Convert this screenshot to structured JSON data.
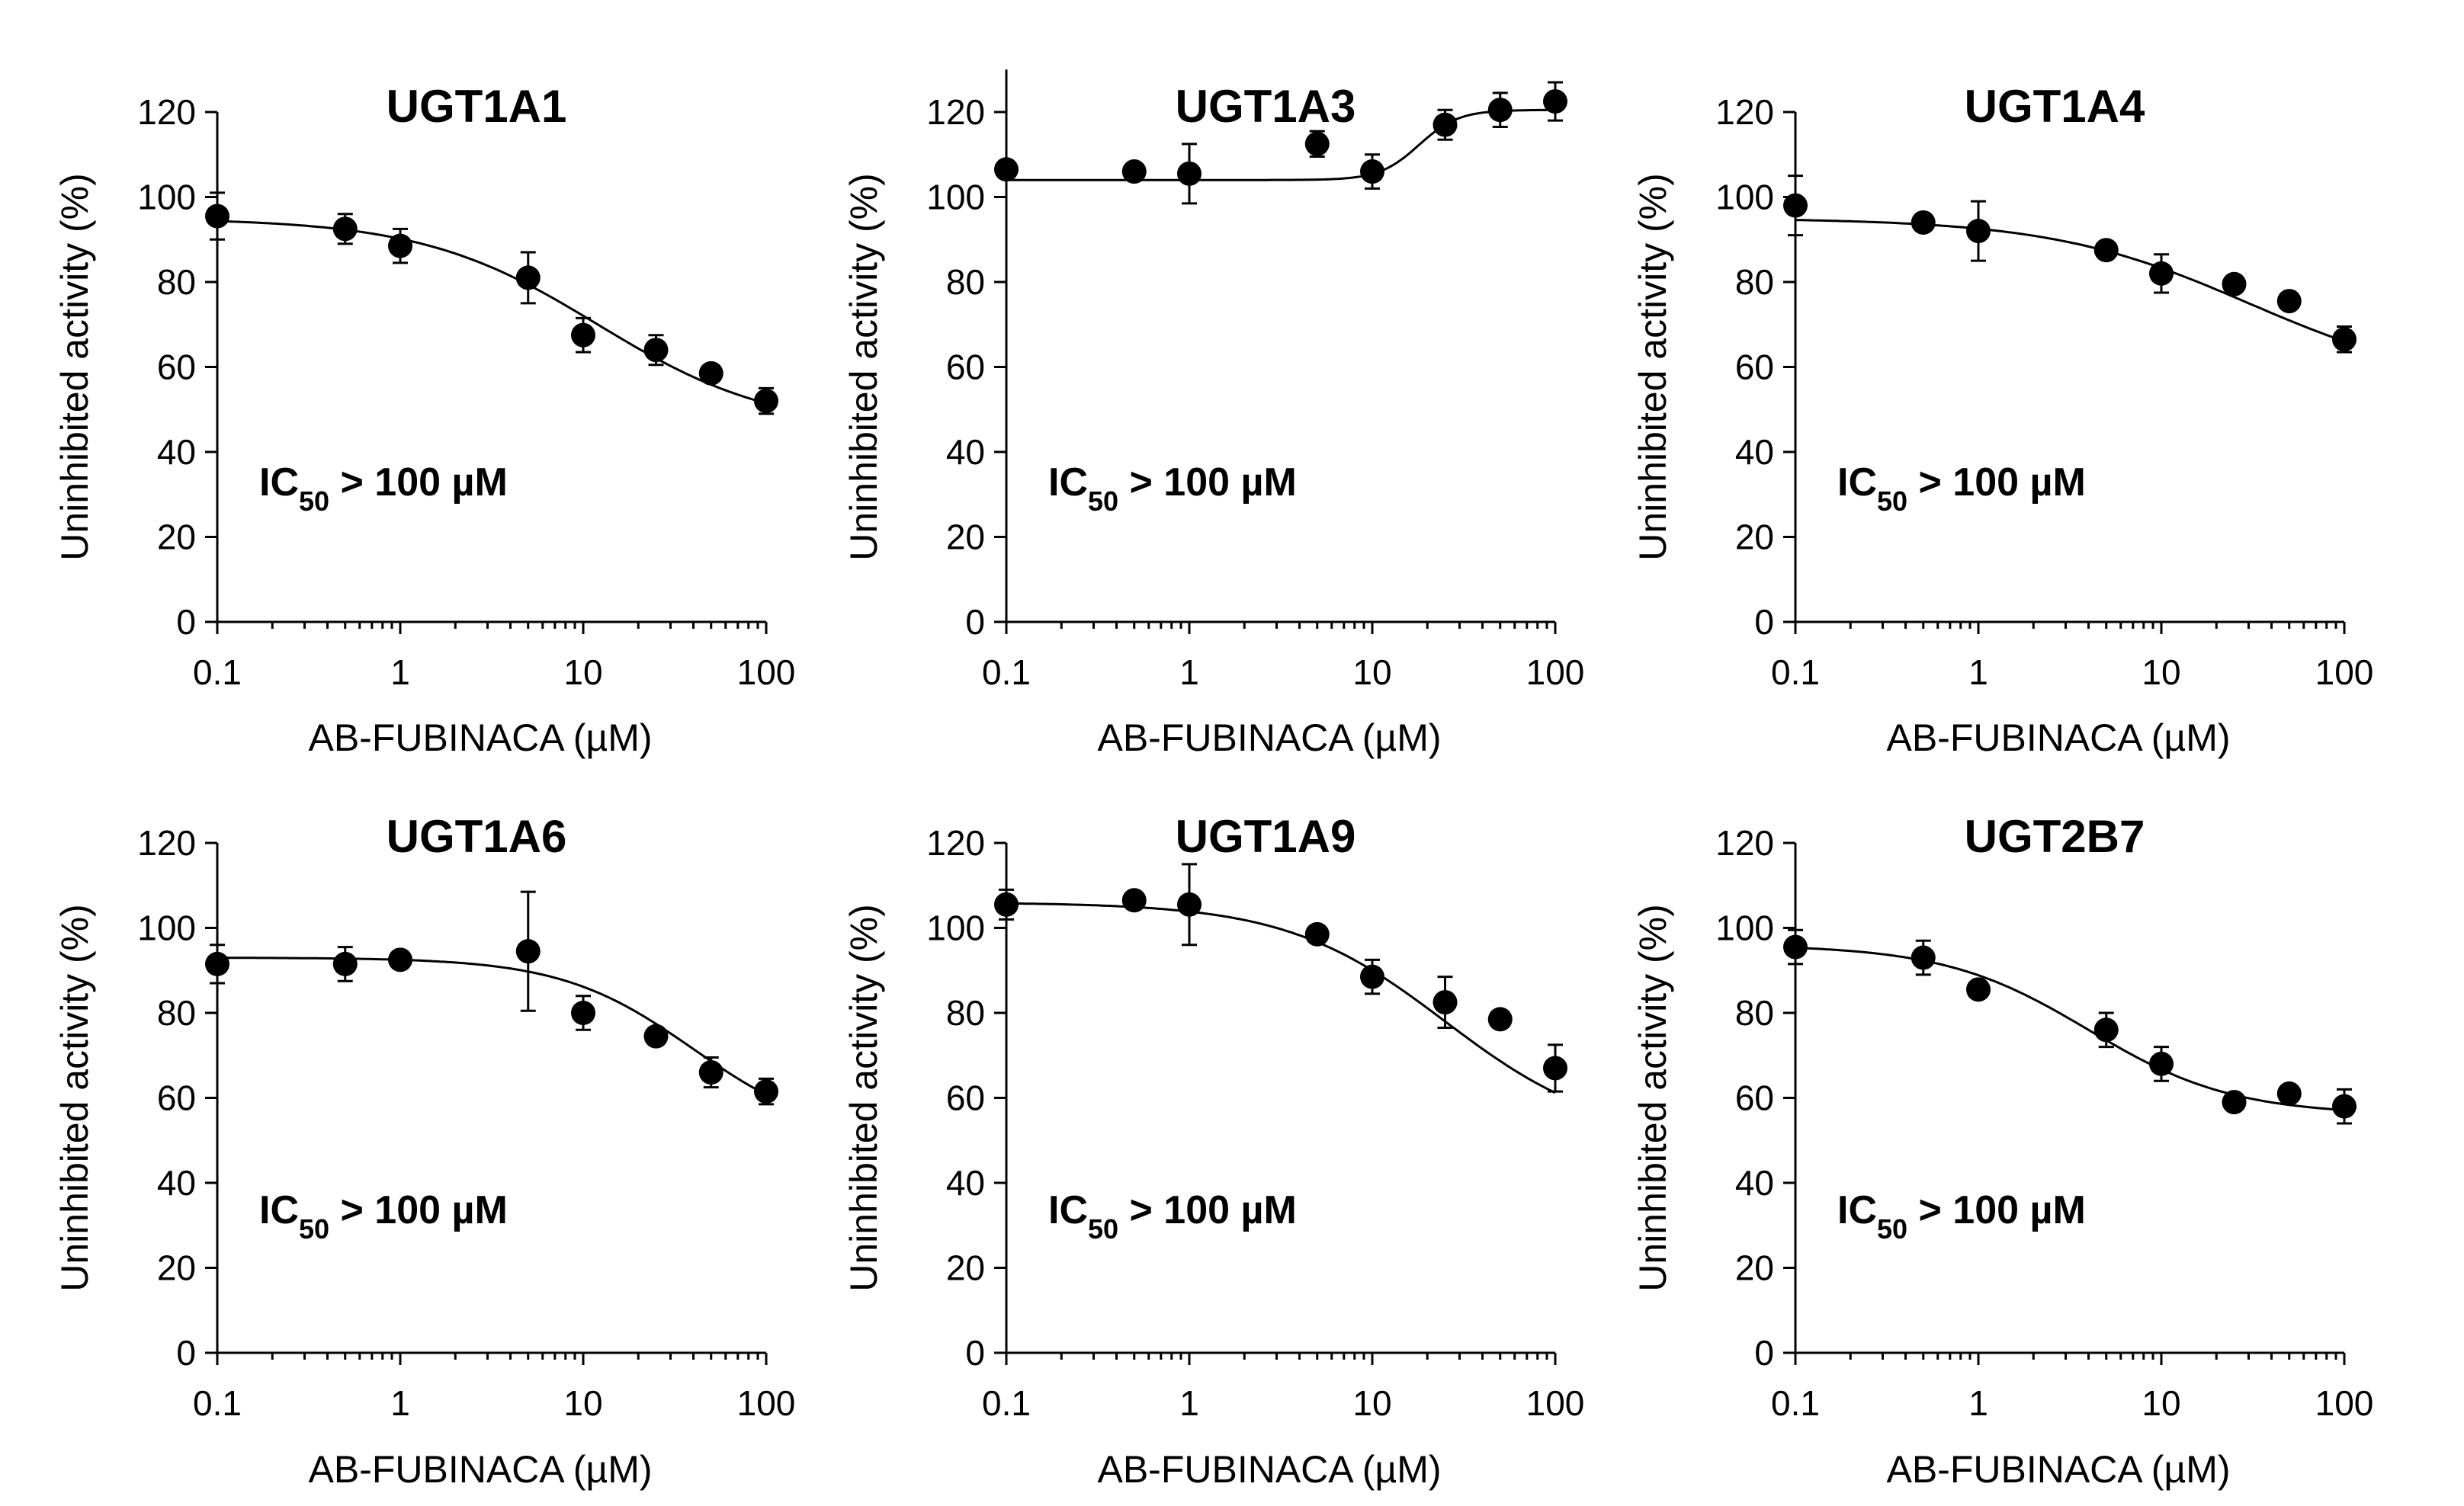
{
  "chart_data": [
    {
      "type": "scatter",
      "title": "UGT1A1",
      "annotation": {
        "main": "IC",
        "sub": "50",
        "rest": " > 100 µM"
      },
      "xlabel": "AB-FUBINACA (µM)",
      "ylabel": "Uninhibited activity (%)",
      "x_scale": "log",
      "xlim": [
        0.1,
        100
      ],
      "ylim": [
        0,
        120
      ],
      "xticks": [
        0.1,
        1,
        10,
        100
      ],
      "xtick_labels": [
        "0.1",
        "1",
        "10",
        "100"
      ],
      "yticks": [
        0,
        20,
        40,
        60,
        80,
        100,
        120
      ],
      "yaxis_top": 120,
      "x": [
        0.1,
        0.5,
        1,
        5,
        10,
        25,
        50,
        100
      ],
      "y": [
        95.5,
        92.5,
        88.5,
        81,
        67.5,
        64,
        58.5,
        52
      ],
      "err": [
        5.5,
        3.5,
        4,
        6,
        4,
        3.5,
        1.5,
        3
      ],
      "fit": {
        "top": 95,
        "bottom": 45,
        "ec50": 12,
        "hill": 0.9
      }
    },
    {
      "type": "scatter",
      "title": "UGT1A3",
      "annotation": {
        "main": "IC",
        "sub": "50",
        "rest": " > 100 µM"
      },
      "xlabel": "AB-FUBINACA (µM)",
      "ylabel": "Uninhibited activity (%)",
      "x_scale": "log",
      "xlim": [
        0.1,
        100
      ],
      "ylim": [
        0,
        130
      ],
      "xticks": [
        0.1,
        1,
        10,
        100
      ],
      "xtick_labels": [
        "0.1",
        "1",
        "10",
        "100"
      ],
      "yticks": [
        0,
        20,
        40,
        60,
        80,
        100,
        120
      ],
      "yaxis_top": 130,
      "x": [
        0.1,
        0.5,
        1,
        5,
        10,
        25,
        50,
        100
      ],
      "y": [
        106.5,
        106,
        105.5,
        112.5,
        106,
        117,
        120.5,
        122.5
      ],
      "err": [
        2,
        1.5,
        7,
        3,
        4,
        3.5,
        4,
        4.5
      ],
      "fit": {
        "top": 104,
        "bottom": 120.5,
        "ec50": 18,
        "hill": 4
      }
    },
    {
      "type": "scatter",
      "title": "UGT1A4",
      "annotation": {
        "main": "IC",
        "sub": "50",
        "rest": " > 100 µM"
      },
      "xlabel": "AB-FUBINACA (µM)",
      "ylabel": "Uninhibited activity (%)",
      "x_scale": "log",
      "xlim": [
        0.1,
        100
      ],
      "ylim": [
        0,
        120
      ],
      "xticks": [
        0.1,
        1,
        10,
        100
      ],
      "xtick_labels": [
        "0.1",
        "1",
        "10",
        "100"
      ],
      "yticks": [
        0,
        20,
        40,
        60,
        80,
        100,
        120
      ],
      "yaxis_top": 120,
      "x": [
        0.1,
        0.5,
        1,
        5,
        10,
        25,
        50,
        100
      ],
      "y": [
        98,
        94,
        92,
        87.5,
        82,
        79.5,
        75.5,
        66.5
      ],
      "err": [
        7,
        2,
        7,
        2,
        4.5,
        1.5,
        1.5,
        3
      ],
      "fit": {
        "top": 95,
        "bottom": 55,
        "ec50": 30,
        "hill": 0.8
      }
    },
    {
      "type": "scatter",
      "title": "UGT1A6",
      "annotation": {
        "main": "IC",
        "sub": "50",
        "rest": " > 100 µM"
      },
      "xlabel": "AB-FUBINACA (µM)",
      "ylabel": "Uninhibited activity (%)",
      "x_scale": "log",
      "xlim": [
        0.1,
        100
      ],
      "ylim": [
        0,
        120
      ],
      "xticks": [
        0.1,
        1,
        10,
        100
      ],
      "xtick_labels": [
        "0.1",
        "1",
        "10",
        "100"
      ],
      "yticks": [
        0,
        20,
        40,
        60,
        80,
        100,
        120
      ],
      "yaxis_top": 120,
      "x": [
        0.1,
        0.5,
        1,
        5,
        10,
        25,
        50,
        100
      ],
      "y": [
        91.5,
        91.5,
        92.5,
        94.5,
        80,
        74.5,
        66,
        61.5
      ],
      "err": [
        4.5,
        4,
        1.5,
        14,
        4,
        2,
        3.5,
        3
      ],
      "fit": {
        "top": 93,
        "bottom": 50,
        "ec50": 40,
        "hill": 1.2
      }
    },
    {
      "type": "scatter",
      "title": "UGT1A9",
      "annotation": {
        "main": "IC",
        "sub": "50",
        "rest": " > 100 µM"
      },
      "xlabel": "AB-FUBINACA (µM)",
      "ylabel": "Uninhibited activity (%)",
      "x_scale": "log",
      "xlim": [
        0.1,
        100
      ],
      "ylim": [
        0,
        120
      ],
      "xticks": [
        0.1,
        1,
        10,
        100
      ],
      "xtick_labels": [
        "0.1",
        "1",
        "10",
        "100"
      ],
      "yticks": [
        0,
        20,
        40,
        60,
        80,
        100,
        120
      ],
      "yaxis_top": 120,
      "x": [
        0.1,
        0.5,
        1,
        5,
        10,
        25,
        50,
        100
      ],
      "y": [
        105.5,
        106.5,
        105.5,
        98.5,
        88.5,
        82.5,
        78.5,
        67
      ],
      "err": [
        3.5,
        2,
        9.5,
        2,
        4,
        6,
        2,
        5.5
      ],
      "fit": {
        "top": 106,
        "bottom": 50,
        "ec50": 25,
        "hill": 1
      }
    },
    {
      "type": "scatter",
      "title": "UGT2B7",
      "annotation": {
        "main": "IC",
        "sub": "50",
        "rest": " > 100 µM"
      },
      "xlabel": "AB-FUBINACA (µM)",
      "ylabel": "Uninhibited activity (%)",
      "x_scale": "log",
      "xlim": [
        0.1,
        100
      ],
      "ylim": [
        0,
        120
      ],
      "xticks": [
        0.1,
        1,
        10,
        100
      ],
      "xtick_labels": [
        "0.1",
        "1",
        "10",
        "100"
      ],
      "yticks": [
        0,
        20,
        40,
        60,
        80,
        100,
        120
      ],
      "yaxis_top": 120,
      "x": [
        0.1,
        0.5,
        1,
        5,
        10,
        25,
        50,
        100
      ],
      "y": [
        95.5,
        93,
        85.5,
        76,
        68,
        59,
        61,
        58
      ],
      "err": [
        4,
        4,
        1.5,
        4,
        4,
        1.5,
        1.5,
        4
      ],
      "fit": {
        "top": 96,
        "bottom": 56,
        "ec50": 4,
        "hill": 1.1
      }
    }
  ]
}
